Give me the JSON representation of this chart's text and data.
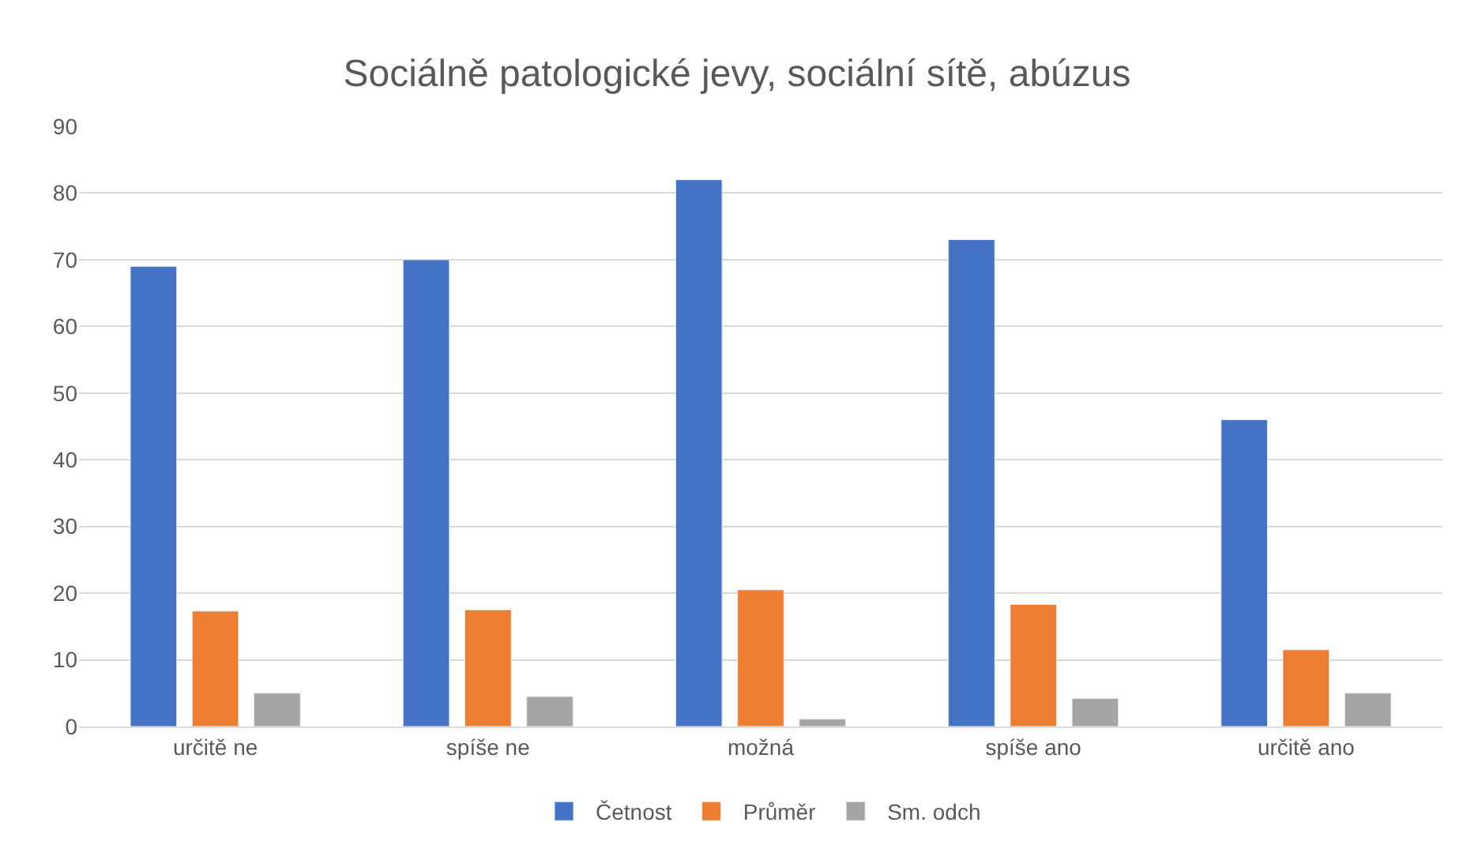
{
  "chart_data": {
    "type": "bar",
    "title": "Sociálně patologické jevy, sociální sítě, abúzus",
    "categories": [
      "určitě ne",
      "spíše ne",
      "možná",
      "spíše ano",
      "určitě ano"
    ],
    "series": [
      {
        "name": "Četnost",
        "color": "#4472c4",
        "values": [
          69,
          70,
          82,
          73,
          46
        ]
      },
      {
        "name": "Průměr",
        "color": "#ed7d31",
        "values": [
          17.3,
          17.5,
          20.5,
          18.3,
          11.5
        ]
      },
      {
        "name": "Sm. odch",
        "color": "#a5a5a5",
        "values": [
          5,
          4.5,
          1.1,
          4.2,
          5
        ]
      }
    ],
    "ylim": [
      0,
      90
    ],
    "yticks": [
      0,
      10,
      20,
      30,
      40,
      50,
      60,
      70,
      80,
      90
    ],
    "grid": "y",
    "legend": "bottom"
  }
}
